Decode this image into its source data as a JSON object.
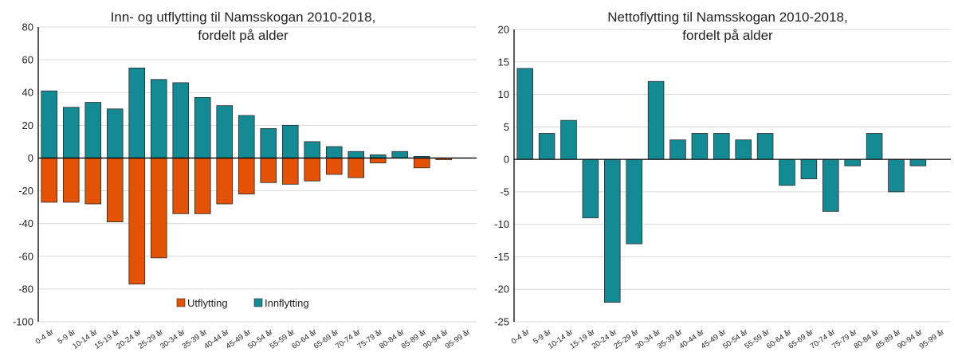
{
  "chart_data": [
    {
      "type": "bar",
      "title": "Inn- og utflytting til Namsskogan 2010-2018,",
      "subtitle": "fordelt på alder",
      "categories": [
        "0-4 år",
        "5-9 år",
        "10-14 år",
        "15-19 år",
        "20-24 år",
        "25-29 år",
        "30-34 år",
        "35-39 år",
        "40-44 år",
        "45-49 år",
        "50-54 år",
        "55-59 år",
        "60-64 år",
        "65-69 år",
        "70-74 år",
        "75-79 år",
        "80-84 år",
        "85-89 år",
        "90-94 år",
        "95-99 år"
      ],
      "series": [
        {
          "name": "Utflytting",
          "color": "#E35205",
          "values": [
            -27,
            -27,
            -28,
            -39,
            -77,
            -61,
            -34,
            -34,
            -28,
            -22,
            -15,
            -16,
            -14,
            -10,
            -12,
            -3,
            0,
            -6,
            -1,
            0
          ]
        },
        {
          "name": "Innflytting",
          "color": "#138A94",
          "values": [
            41,
            31,
            34,
            30,
            55,
            48,
            46,
            37,
            32,
            26,
            18,
            20,
            10,
            7,
            4,
            2,
            4,
            1,
            0,
            0
          ]
        }
      ],
      "ylim": [
        -100,
        80
      ],
      "yticks": [
        80,
        60,
        40,
        20,
        0,
        -20,
        -40,
        -60,
        -80,
        -100
      ],
      "stacked": true,
      "grid": true,
      "legend": "bottom-center"
    },
    {
      "type": "bar",
      "title": "Nettoflytting til Namsskogan 2010-2018,",
      "subtitle": "fordelt på alder",
      "categories": [
        "0-4 år",
        "5-9 år",
        "10-14 år",
        "15-19 år",
        "20-24 år",
        "25-29 år",
        "30-34 år",
        "35-39 år",
        "40-44 år",
        "45-49 år",
        "50-54 år",
        "55-59 år",
        "60-64 år",
        "65-69 år",
        "70-74 år",
        "75-79 år",
        "80-84 år",
        "85-89 år",
        "90-94 år",
        "95-99 år"
      ],
      "series": [
        {
          "color": "#138A94",
          "values": [
            14,
            4,
            6,
            -9,
            -22,
            -13,
            12,
            3,
            4,
            4,
            3,
            4,
            -4,
            -3,
            -8,
            -1,
            4,
            -5,
            -1,
            0
          ]
        }
      ],
      "ylim": [
        -25,
        20
      ],
      "yticks": [
        20,
        15,
        10,
        5,
        0,
        -5,
        -10,
        -15,
        -20,
        -25
      ],
      "grid": true,
      "legend": "none"
    }
  ]
}
